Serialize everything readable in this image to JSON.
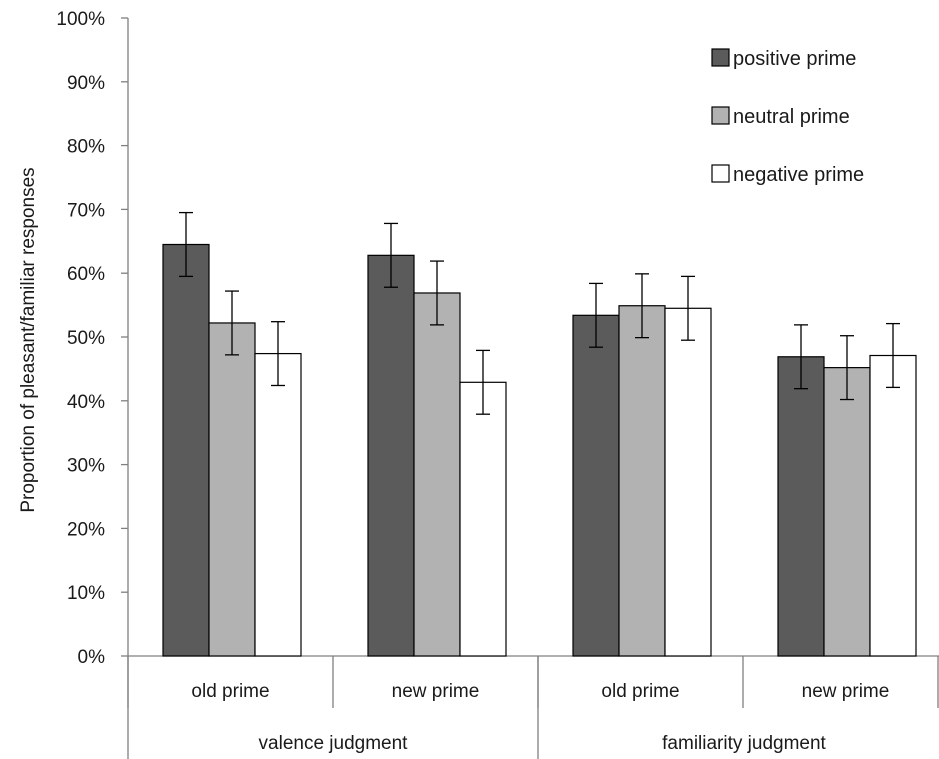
{
  "chart_data": {
    "type": "bar",
    "title": "",
    "ylabel": "Proportion of pleasant/familiar responses",
    "xlabel": "",
    "ylim": [
      0,
      100
    ],
    "yticks": [
      "0%",
      "10%",
      "20%",
      "30%",
      "40%",
      "50%",
      "60%",
      "70%",
      "80%",
      "90%",
      "100%"
    ],
    "groups": [
      {
        "label": "valence judgment",
        "categories": [
          "old prime",
          "new prime"
        ]
      },
      {
        "label": "familiarity judgment",
        "categories": [
          "old prime",
          "new prime"
        ]
      }
    ],
    "categories": [
      "old prime",
      "new prime",
      "old prime",
      "new prime"
    ],
    "series": [
      {
        "name": "positive prime",
        "color": "#5b5b5b",
        "values": [
          64.5,
          62.8,
          53.4,
          46.9
        ],
        "errors": [
          5.0,
          5.0,
          5.0,
          5.0
        ]
      },
      {
        "name": "neutral prime",
        "color": "#b2b2b2",
        "values": [
          52.2,
          56.9,
          54.9,
          45.2
        ],
        "errors": [
          5.0,
          5.0,
          5.0,
          5.0
        ]
      },
      {
        "name": "negative prime",
        "color": "#ffffff",
        "values": [
          47.4,
          42.9,
          54.5,
          47.1
        ],
        "errors": [
          5.0,
          5.0,
          5.0,
          5.0
        ]
      }
    ],
    "legend_position": "top-right",
    "grid": false
  }
}
